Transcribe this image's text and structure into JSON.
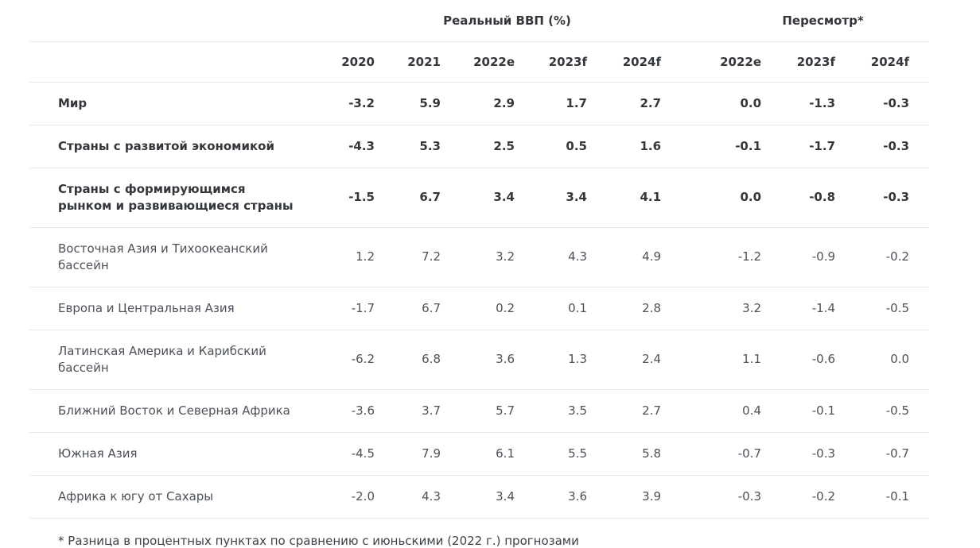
{
  "table": {
    "group_headers": [
      {
        "label": "Реальный ВВП (%)"
      },
      {
        "label": "Пересмотр*"
      }
    ],
    "columns": [
      "2020",
      "2021",
      "2022e",
      "2023f",
      "2024f",
      "2022e",
      "2023f",
      "2024f"
    ],
    "rows": [
      {
        "label": "Мир",
        "bold": true,
        "values": [
          "-3.2",
          "5.9",
          "2.9",
          "1.7",
          "2.7",
          "0.0",
          "-1.3",
          "-0.3"
        ]
      },
      {
        "label": "Страны с развитой экономикой",
        "bold": true,
        "values": [
          "-4.3",
          "5.3",
          "2.5",
          "0.5",
          "1.6",
          "-0.1",
          "-1.7",
          "-0.3"
        ]
      },
      {
        "label": "Страны с формирующимся рынком и развивающиеся страны",
        "bold": true,
        "values": [
          "-1.5",
          "6.7",
          "3.4",
          "3.4",
          "4.1",
          "0.0",
          "-0.8",
          "-0.3"
        ]
      },
      {
        "label": "Восточная Азия и Тихоокеанский бассейн",
        "bold": false,
        "values": [
          "1.2",
          "7.2",
          "3.2",
          "4.3",
          "4.9",
          "-1.2",
          "-0.9",
          "-0.2"
        ]
      },
      {
        "label": "Европа и Центральная Азия",
        "bold": false,
        "values": [
          "-1.7",
          "6.7",
          "0.2",
          "0.1",
          "2.8",
          "3.2",
          "-1.4",
          "-0.5"
        ]
      },
      {
        "label": "Латинская Америка и Карибский бассейн",
        "bold": false,
        "values": [
          "-6.2",
          "6.8",
          "3.6",
          "1.3",
          "2.4",
          "1.1",
          "-0.6",
          "0.0"
        ]
      },
      {
        "label": "Ближний Восток и Северная Африка",
        "bold": false,
        "values": [
          "-3.6",
          "3.7",
          "5.7",
          "3.5",
          "2.7",
          "0.4",
          "-0.1",
          "-0.5"
        ]
      },
      {
        "label": "Южная Азия",
        "bold": false,
        "values": [
          "-4.5",
          "7.9",
          "6.1",
          "5.5",
          "5.8",
          "-0.7",
          "-0.3",
          "-0.7"
        ]
      },
      {
        "label": "Африка к югу от Сахары",
        "bold": false,
        "values": [
          "-2.0",
          "4.3",
          "3.4",
          "3.6",
          "3.9",
          "-0.3",
          "-0.2",
          "-0.1"
        ]
      }
    ],
    "footnote": "* Разница в процентных пунктах по сравнению с июньскими (2022 г.) прогнозами"
  },
  "colors": {
    "bold_text": "#33373c",
    "regular_text": "#4c5159",
    "divider": "#e8e8e8",
    "background": "#ffffff"
  }
}
